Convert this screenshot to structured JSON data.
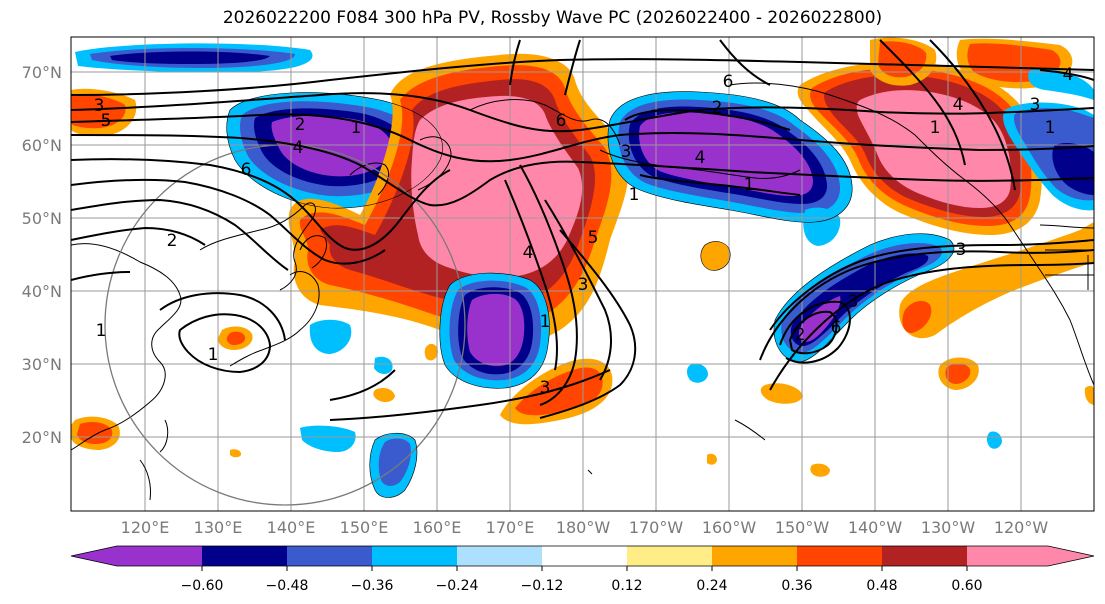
{
  "title": "2026022200 F084 300 hPa PV, Rossby Wave PC (2026022400 - 2026022800)",
  "lat_labels": [
    "70°N",
    "60°N",
    "50°N",
    "40°N",
    "30°N",
    "20°N"
  ],
  "lon_labels": [
    "120°E",
    "130°E",
    "140°E",
    "150°E",
    "160°E",
    "170°E",
    "180°W",
    "170°W",
    "160°W",
    "150°W",
    "140°W",
    "130°W",
    "120°W"
  ],
  "colorbar": {
    "ticks": [
      "−0.60",
      "−0.48",
      "−0.36",
      "−0.24",
      "−0.12",
      "0.12",
      "0.24",
      "0.36",
      "0.48",
      "0.60"
    ],
    "colors": [
      "#9932CC",
      "#00008B",
      "#3A5BCD",
      "#00BFFF",
      "#ADDFFF",
      "#FFFFFF",
      "#FFEE88",
      "#FFA500",
      "#FF4500",
      "#B22222",
      "#FF88AA"
    ]
  },
  "contour_labels": [
    "3",
    "5",
    "2",
    "1",
    "4",
    "6",
    "2",
    "1",
    "3",
    "6",
    "1",
    "4",
    "5",
    "3",
    "1",
    "4",
    "2",
    "6",
    "3",
    "3",
    "3",
    "2",
    "1",
    "1",
    "1",
    "6",
    "3",
    "4",
    "1",
    "4"
  ]
}
